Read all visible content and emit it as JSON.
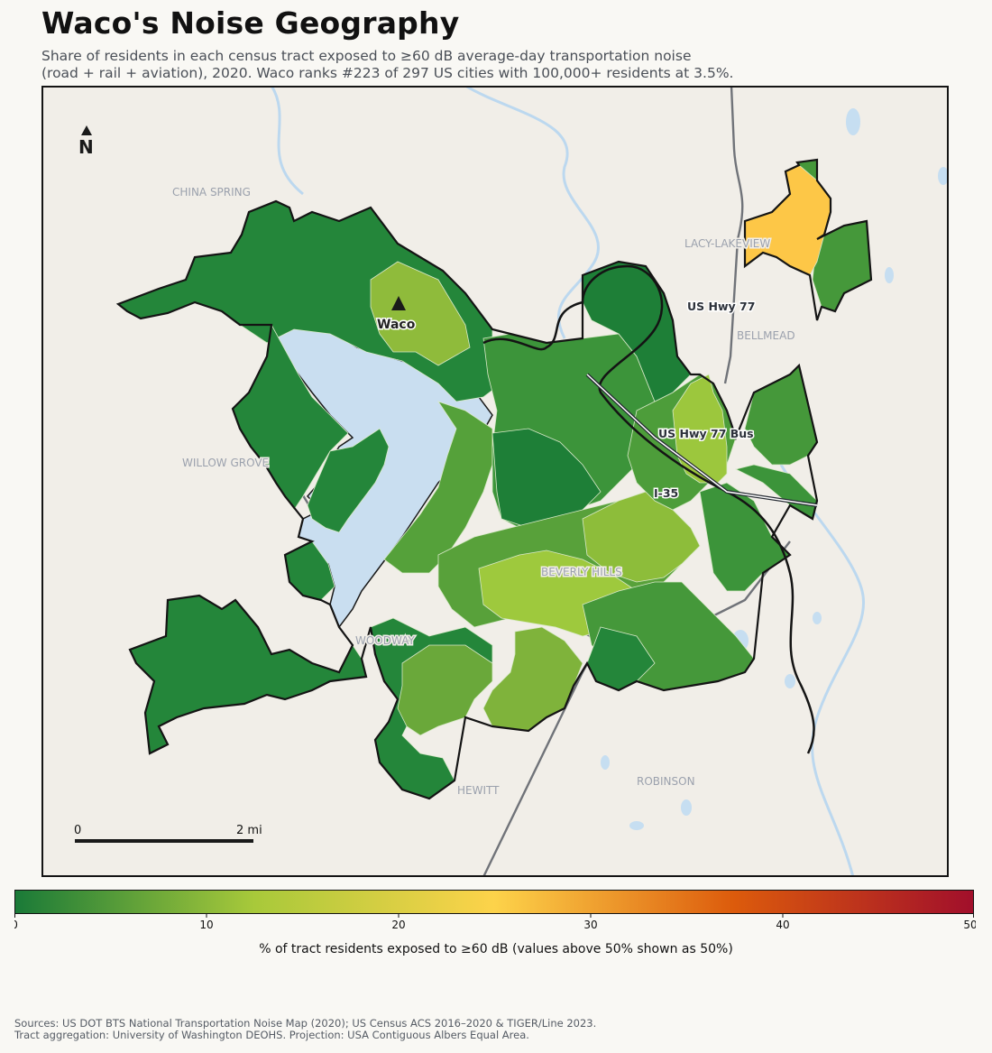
{
  "title": "Waco's Noise Geography",
  "subtitle": [
    "Share of residents in each census tract exposed to ≥60 dB average-day transportation noise",
    "(road + rail + aviation), 2020. Waco ranks #223 of 297 US cities with 100,000+ residents at 3.5%."
  ],
  "map": {
    "north_label": "N",
    "city": {
      "name": "Waco",
      "marker": "triangle-icon"
    },
    "place_labels": [
      "CHINA SPRING",
      "LACY-LAKEVIEW",
      "BELLMEAD",
      "WILLOW GROVE",
      "BEVERLY HILLS",
      "WOODWAY",
      "HEWITT",
      "ROBINSON"
    ],
    "road_labels": [
      "US Hwy 77",
      "US Hwy 77 Bus",
      "I-35"
    ],
    "scale_bar": {
      "start_label": "0",
      "end_label": "2 mi"
    },
    "colors": {
      "land": "#f1eee8",
      "water": "#c9def0",
      "river": "#bcd8ef",
      "road": "#707379",
      "boundary": "#141414"
    }
  },
  "colorbar": {
    "label": "% of tract residents exposed to ≥60 dB (values above 50% shown as 50%)",
    "ticks": [
      "0",
      "10",
      "20",
      "30",
      "40",
      "50"
    ],
    "min": 0,
    "max": 50,
    "stops": [
      "#1a7a38",
      "#a8c93a",
      "#fdd34a",
      "#dc5b0c",
      "#a10f2b"
    ]
  },
  "sources": [
    "Sources: US DOT BTS National Transportation Noise Map (2020); US Census ACS 2016–2020 & TIGER/Line 2023.",
    "Tract aggregation: University of Washington DEOHS. Projection: USA Contiguous Albers Equal Area."
  ]
}
